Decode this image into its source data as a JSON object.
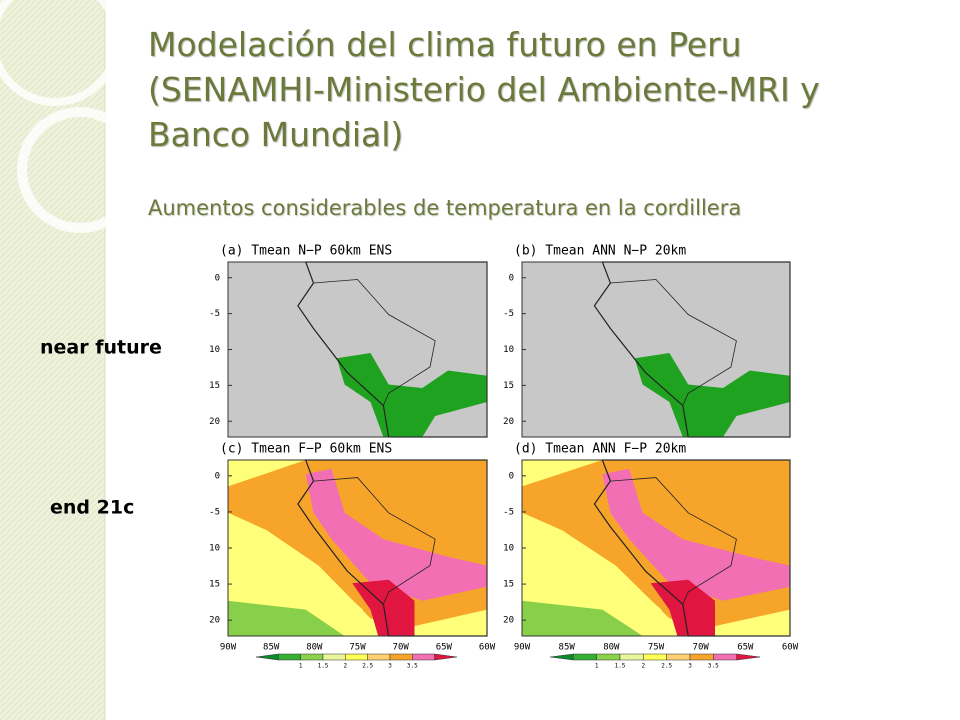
{
  "header": {
    "title": "Modelación del clima futuro en Peru (SENAMHI-Ministerio del Ambiente-MRI y Banco Mundial)",
    "subtitle": "Aumentos considerables de temperatura en la cordillera"
  },
  "rows": [
    "near future",
    "end 21c"
  ],
  "panels": [
    {
      "title": "(a) Tmean N−P 60km ENS"
    },
    {
      "title": "(b) Tmean ANN N−P 20km"
    },
    {
      "title": "(c) Tmean F−P 60km ENS"
    },
    {
      "title": "(d) Tmean ANN F−P 20km"
    }
  ],
  "lat_labels": [
    "0",
    "-5",
    "10",
    "15",
    "20"
  ],
  "lon_labels": [
    "90W",
    "85W",
    "80W",
    "75W",
    "70W",
    "65W",
    "60W"
  ],
  "colorbar_labels": [
    "1",
    "1.5",
    "2",
    "2.5",
    "3",
    "3.5"
  ]
}
